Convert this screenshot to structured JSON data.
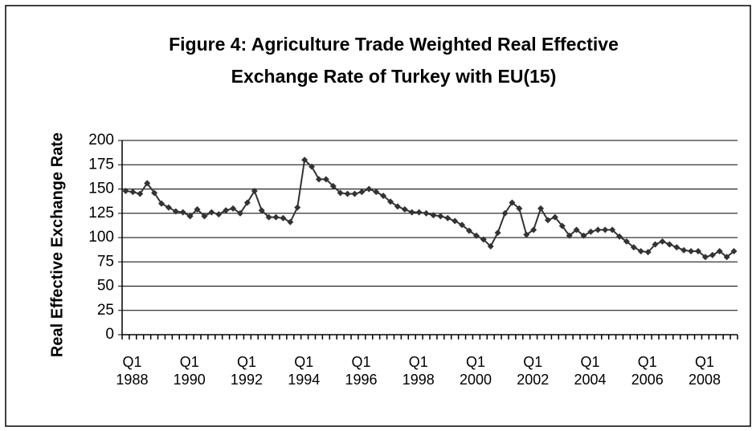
{
  "chart_data": {
    "type": "line",
    "title": [
      "Figure 4: Agriculture Trade Weighted Real Effective",
      "Exchange Rate of Turkey with EU(15)"
    ],
    "y_label": "Real Effective Exchange Rate",
    "categories": [
      "Q1 1988",
      null,
      null,
      null,
      null,
      null,
      null,
      null,
      "Q1 1990",
      null,
      null,
      null,
      null,
      null,
      null,
      null,
      "Q1 1992",
      null,
      null,
      null,
      null,
      null,
      null,
      null,
      "Q1 1994",
      null,
      null,
      null,
      null,
      null,
      null,
      null,
      "Q1 1996",
      null,
      null,
      null,
      null,
      null,
      null,
      null,
      "Q1 1998",
      null,
      null,
      null,
      null,
      null,
      null,
      null,
      "Q1 2000",
      null,
      null,
      null,
      null,
      null,
      null,
      null,
      "Q1 2002",
      null,
      null,
      null,
      null,
      null,
      null,
      null,
      "Q1 2004",
      null,
      null,
      null,
      null,
      null,
      null,
      null,
      "Q1 2006",
      null,
      null,
      null,
      null,
      null,
      null,
      null,
      "Q1 2008",
      null,
      null,
      null,
      null,
      null
    ],
    "values": [
      148,
      147,
      145,
      156,
      146,
      135,
      131,
      127,
      126,
      122,
      129,
      122,
      126,
      124,
      128,
      130,
      125,
      136,
      148,
      128,
      121,
      121,
      120,
      116,
      131,
      180,
      173,
      160,
      160,
      153,
      146,
      145,
      145,
      147,
      150,
      147,
      143,
      137,
      132,
      129,
      126,
      126,
      125,
      123,
      122,
      120,
      117,
      113,
      107,
      102,
      98,
      91,
      105,
      125,
      136,
      130,
      103,
      108,
      130,
      118,
      121,
      112,
      102,
      108,
      102,
      106,
      108,
      108,
      108,
      101,
      96,
      90,
      86,
      85,
      93,
      96,
      93,
      90,
      87,
      86,
      86,
      80,
      82,
      86,
      80,
      86
    ],
    "color": "#333333",
    "ylim": [
      0,
      200
    ],
    "yticks": [
      0,
      25,
      50,
      75,
      100,
      125,
      150,
      175,
      200
    ],
    "grid": true
  }
}
